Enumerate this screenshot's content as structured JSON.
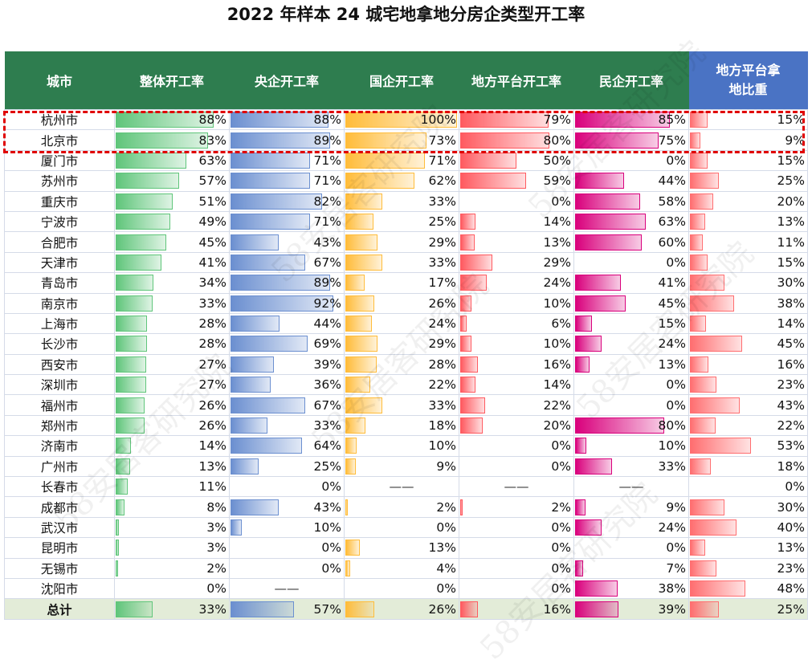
{
  "title": "2022 年样本 24 城宅地拿地分房企类型开工率",
  "watermark": "58安居客研究院",
  "chart_data": {
    "type": "table",
    "title": "2022 年样本 24 城宅地拿地分房企类型开工率",
    "columns": [
      "城市",
      "整体开工率",
      "央企开工率",
      "国企开工率",
      "地方平台开工率",
      "民企开工率",
      "地方平台拿地比重"
    ],
    "column_colors": [
      "#5fc57a",
      "#6b8fd0",
      "#ffbc3a",
      "#ff5a60",
      "#d9007c",
      "#ff6e70"
    ],
    "header_colors": {
      "main": "#2e7d4f",
      "last": "#4a73c4"
    },
    "highlight_color": "#e00000",
    "highlight_rows": [
      "杭州市",
      "北京市"
    ],
    "missing_label": "——",
    "rows": [
      {
        "city": "杭州市",
        "values": [
          88,
          88,
          100,
          79,
          85,
          15
        ]
      },
      {
        "city": "北京市",
        "values": [
          83,
          89,
          73,
          80,
          75,
          9
        ]
      },
      {
        "city": "厦门市",
        "values": [
          63,
          71,
          71,
          50,
          0,
          15
        ]
      },
      {
        "city": "苏州市",
        "values": [
          57,
          71,
          62,
          59,
          44,
          25
        ]
      },
      {
        "city": "重庆市",
        "values": [
          51,
          82,
          33,
          0,
          58,
          20
        ]
      },
      {
        "city": "宁波市",
        "values": [
          49,
          71,
          25,
          14,
          63,
          13
        ]
      },
      {
        "city": "合肥市",
        "values": [
          45,
          43,
          29,
          13,
          60,
          11
        ]
      },
      {
        "city": "天津市",
        "values": [
          41,
          67,
          33,
          29,
          0,
          15
        ]
      },
      {
        "city": "青岛市",
        "values": [
          34,
          89,
          17,
          24,
          41,
          30
        ]
      },
      {
        "city": "南京市",
        "values": [
          33,
          92,
          26,
          10,
          45,
          38
        ]
      },
      {
        "city": "上海市",
        "values": [
          28,
          44,
          24,
          6,
          15,
          14
        ]
      },
      {
        "city": "长沙市",
        "values": [
          28,
          69,
          29,
          10,
          24,
          45
        ]
      },
      {
        "city": "西安市",
        "values": [
          27,
          39,
          28,
          16,
          13,
          16
        ]
      },
      {
        "city": "深圳市",
        "values": [
          27,
          36,
          22,
          14,
          0,
          23
        ]
      },
      {
        "city": "福州市",
        "values": [
          26,
          67,
          33,
          22,
          0,
          43
        ]
      },
      {
        "city": "郑州市",
        "values": [
          26,
          33,
          18,
          20,
          80,
          22
        ]
      },
      {
        "city": "济南市",
        "values": [
          14,
          64,
          10,
          0,
          10,
          53
        ]
      },
      {
        "city": "广州市",
        "values": [
          13,
          25,
          9,
          0,
          33,
          18
        ]
      },
      {
        "city": "长春市",
        "values": [
          11,
          0,
          null,
          null,
          null,
          0
        ]
      },
      {
        "city": "成都市",
        "values": [
          8,
          43,
          2,
          2,
          9,
          30
        ]
      },
      {
        "city": "武汉市",
        "values": [
          3,
          10,
          0,
          0,
          24,
          40
        ]
      },
      {
        "city": "昆明市",
        "values": [
          3,
          0,
          13,
          0,
          0,
          13
        ]
      },
      {
        "city": "无锡市",
        "values": [
          2,
          0,
          4,
          0,
          7,
          23
        ]
      },
      {
        "city": "沈阳市",
        "values": [
          0,
          null,
          0,
          0,
          38,
          48
        ]
      }
    ],
    "total": {
      "city": "总计",
      "values": [
        33,
        57,
        26,
        16,
        39,
        25
      ]
    }
  }
}
